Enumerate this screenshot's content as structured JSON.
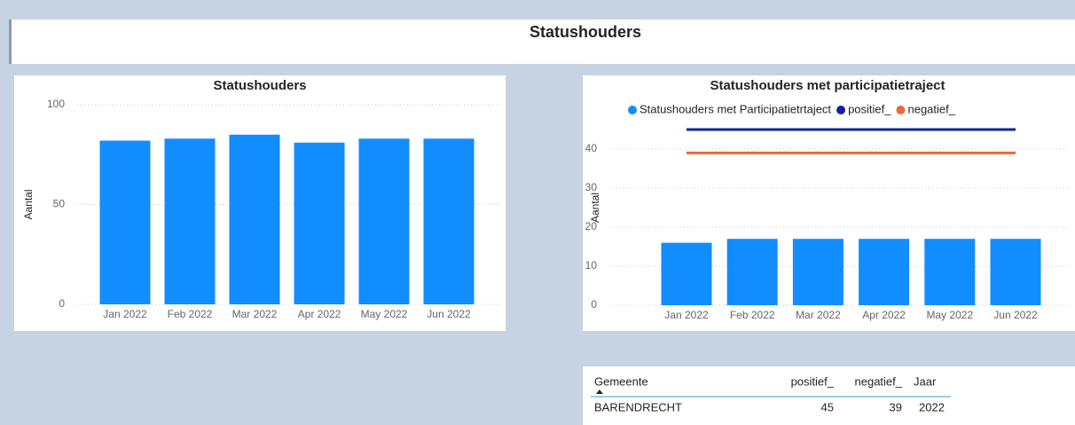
{
  "header": {
    "title": "Statushouders"
  },
  "chart_data": [
    {
      "type": "bar",
      "title": "Statushouders",
      "y_label": "Aantal",
      "categories": [
        "Jan 2022",
        "Feb 2022",
        "Mar 2022",
        "Apr 2022",
        "May 2022",
        "Jun 2022"
      ],
      "values": [
        82,
        83,
        85,
        81,
        83,
        83
      ],
      "color": "#118dff",
      "ylim": [
        0,
        100
      ],
      "yticks": [
        0,
        50,
        100
      ],
      "grid": true
    },
    {
      "type": "bar",
      "title": "Statushouders met participatietraject",
      "y_label": "Aantal",
      "categories": [
        "Jan 2022",
        "Feb 2022",
        "Mar 2022",
        "Apr 2022",
        "May 2022",
        "Jun 2022"
      ],
      "series": [
        {
          "name": "Statushouders met Participatietrtaject",
          "color": "#118dff",
          "type": "bar",
          "values": [
            16,
            17,
            17,
            17,
            17,
            17
          ]
        },
        {
          "name": "positief_",
          "color": "#12239e",
          "type": "line",
          "values": [
            45,
            45,
            45,
            45,
            45,
            45
          ]
        },
        {
          "name": "negatief_",
          "color": "#e66c37",
          "type": "line",
          "values": [
            39,
            39,
            39,
            39,
            39,
            39
          ]
        }
      ],
      "ylim": [
        0,
        50
      ],
      "yticks": [
        0,
        10,
        20,
        30,
        40
      ],
      "grid": true,
      "legend": "top"
    }
  ],
  "table": {
    "columns": [
      "Gemeente",
      "positief_",
      "negatief_",
      "Jaar"
    ],
    "rows": [
      [
        "BARENDRECHT",
        45,
        39,
        2022
      ]
    ]
  }
}
